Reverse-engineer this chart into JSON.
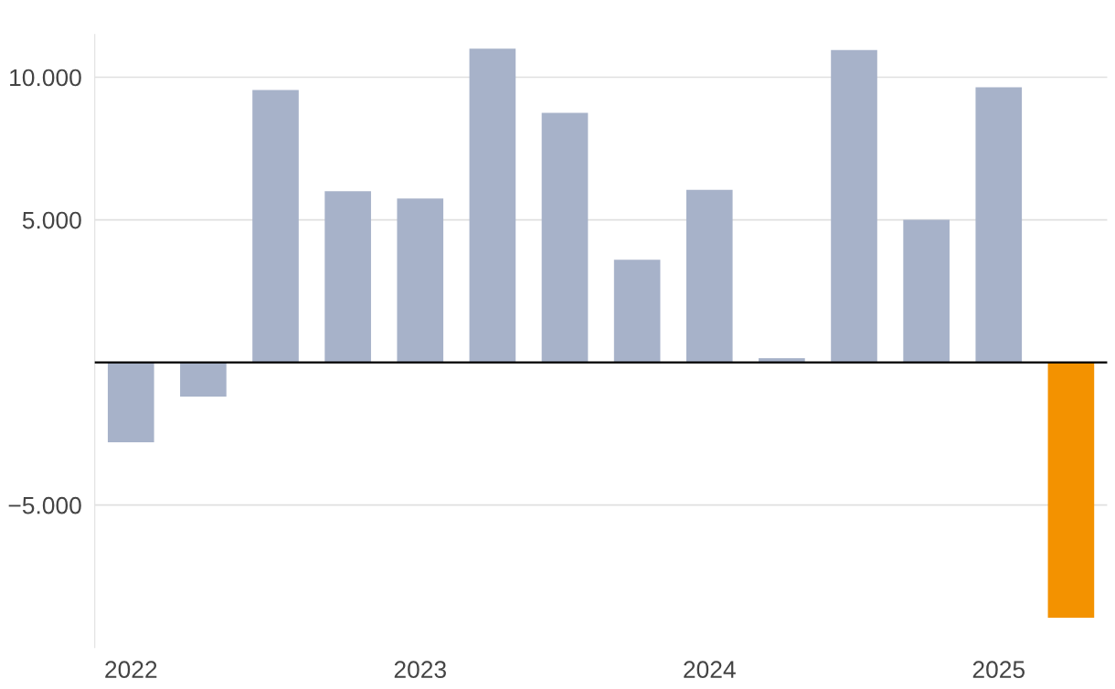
{
  "chart_data": {
    "type": "bar",
    "categories": [
      "2022",
      null,
      null,
      null,
      "2023",
      null,
      null,
      null,
      "2024",
      null,
      null,
      null,
      "2025",
      null
    ],
    "values": [
      -2800,
      -1200,
      9550,
      6000,
      5750,
      11000,
      8750,
      3600,
      6050,
      150,
      10950,
      5000,
      9650,
      -8950
    ],
    "colors": [
      "#a7b2c9",
      "#a7b2c9",
      "#a7b2c9",
      "#a7b2c9",
      "#a7b2c9",
      "#a7b2c9",
      "#a7b2c9",
      "#a7b2c9",
      "#a7b2c9",
      "#a7b2c9",
      "#a7b2c9",
      "#a7b2c9",
      "#a7b2c9",
      "#f39200"
    ],
    "ylim": [
      -10000,
      11500
    ],
    "yticks": [
      {
        "value": -5000,
        "label": "−5.000"
      },
      {
        "value": 5000,
        "label": "5.000"
      },
      {
        "value": 10000,
        "label": "10.000"
      }
    ],
    "ref_lines": [
      {
        "axis": "y",
        "value": 0,
        "color": "#000000"
      }
    ],
    "grid": "y"
  }
}
